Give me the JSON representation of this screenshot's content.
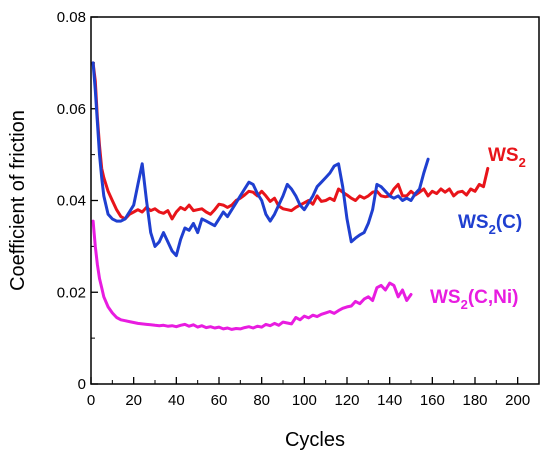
{
  "chart_data": {
    "type": "line",
    "xlabel": "Cycles",
    "ylabel": "Coefficient of friction",
    "xlim": [
      0,
      210
    ],
    "ylim": [
      0,
      0.08
    ],
    "x_ticks": [
      "0",
      "20",
      "40",
      "60",
      "80",
      "100",
      "120",
      "140",
      "160",
      "180",
      "200"
    ],
    "y_ticks": [
      "0",
      "0.02",
      "0.04",
      "0.06",
      "0.08"
    ],
    "grid": false,
    "legend": "inline labels next to curves",
    "series": [
      {
        "name": "WS2",
        "label_main": "WS",
        "label_sub": "2",
        "label_suffix": "",
        "color": "#e8141a",
        "x": [
          1,
          2,
          3,
          4,
          5,
          6,
          8,
          10,
          12,
          14,
          16,
          18,
          20,
          22,
          24,
          26,
          28,
          30,
          32,
          34,
          36,
          38,
          40,
          42,
          44,
          46,
          48,
          50,
          52,
          54,
          56,
          58,
          60,
          62,
          64,
          66,
          68,
          70,
          72,
          74,
          76,
          78,
          80,
          82,
          84,
          86,
          88,
          90,
          92,
          94,
          96,
          98,
          100,
          102,
          104,
          106,
          108,
          110,
          112,
          114,
          116,
          118,
          120,
          122,
          124,
          126,
          128,
          130,
          132,
          134,
          136,
          138,
          140,
          142,
          144,
          146,
          148,
          150,
          152,
          154,
          156,
          158,
          160,
          162,
          164,
          166,
          168,
          170,
          172,
          174,
          176,
          178,
          180,
          182,
          184,
          186
        ],
        "y": [
          0.07,
          0.066,
          0.058,
          0.052,
          0.047,
          0.045,
          0.042,
          0.04,
          0.038,
          0.0365,
          0.036,
          0.037,
          0.0375,
          0.038,
          0.0375,
          0.0385,
          0.0378,
          0.0382,
          0.0375,
          0.0372,
          0.0378,
          0.036,
          0.0375,
          0.0385,
          0.038,
          0.039,
          0.0378,
          0.038,
          0.0382,
          0.0375,
          0.037,
          0.038,
          0.0392,
          0.039,
          0.0385,
          0.039,
          0.04,
          0.0405,
          0.0412,
          0.042,
          0.0418,
          0.041,
          0.042,
          0.041,
          0.0398,
          0.0405,
          0.0388,
          0.0382,
          0.038,
          0.0378,
          0.0385,
          0.039,
          0.0395,
          0.04,
          0.0392,
          0.041,
          0.0398,
          0.04,
          0.0405,
          0.04,
          0.0425,
          0.0418,
          0.0412,
          0.0405,
          0.04,
          0.041,
          0.0405,
          0.041,
          0.0418,
          0.042,
          0.041,
          0.0408,
          0.041,
          0.0425,
          0.0435,
          0.041,
          0.041,
          0.042,
          0.0412,
          0.0418,
          0.0425,
          0.041,
          0.042,
          0.0415,
          0.0425,
          0.0418,
          0.0425,
          0.041,
          0.0418,
          0.042,
          0.0412,
          0.0425,
          0.042,
          0.0435,
          0.043,
          0.047
        ]
      },
      {
        "name": "WS2(C)",
        "label_main": "WS",
        "label_sub": "2",
        "label_suffix": "(C)",
        "color": "#1f3fd0",
        "x": [
          1,
          2,
          3,
          4,
          5,
          6,
          8,
          10,
          12,
          14,
          16,
          18,
          20,
          22,
          24,
          26,
          28,
          30,
          32,
          34,
          36,
          38,
          40,
          42,
          44,
          46,
          48,
          50,
          52,
          54,
          56,
          58,
          60,
          62,
          64,
          66,
          68,
          70,
          72,
          74,
          76,
          78,
          80,
          82,
          84,
          86,
          88,
          90,
          92,
          94,
          96,
          98,
          100,
          102,
          104,
          106,
          108,
          110,
          112,
          114,
          116,
          118,
          120,
          122,
          124,
          126,
          128,
          130,
          132,
          134,
          136,
          138,
          140,
          142,
          144,
          146,
          148,
          150,
          152,
          154,
          156,
          158
        ],
        "y": [
          0.07,
          0.064,
          0.057,
          0.05,
          0.045,
          0.041,
          0.037,
          0.036,
          0.0355,
          0.0355,
          0.036,
          0.0375,
          0.039,
          0.0435,
          0.048,
          0.04,
          0.033,
          0.03,
          0.031,
          0.033,
          0.031,
          0.029,
          0.028,
          0.0315,
          0.034,
          0.0335,
          0.035,
          0.033,
          0.036,
          0.0355,
          0.035,
          0.0345,
          0.036,
          0.0375,
          0.0365,
          0.038,
          0.0395,
          0.041,
          0.0425,
          0.044,
          0.0435,
          0.0415,
          0.04,
          0.037,
          0.0355,
          0.037,
          0.039,
          0.041,
          0.0435,
          0.0425,
          0.041,
          0.039,
          0.038,
          0.0395,
          0.041,
          0.043,
          0.044,
          0.045,
          0.046,
          0.0475,
          0.048,
          0.043,
          0.036,
          0.031,
          0.0318,
          0.0325,
          0.033,
          0.035,
          0.038,
          0.0435,
          0.043,
          0.042,
          0.041,
          0.0405,
          0.041,
          0.04,
          0.0405,
          0.04,
          0.0415,
          0.0425,
          0.046,
          0.049
        ]
      },
      {
        "name": "WS2(C,Ni)",
        "label_main": "WS",
        "label_sub": "2",
        "label_suffix": "(C,Ni)",
        "color": "#e81ce0",
        "x": [
          1,
          2,
          3,
          4,
          5,
          6,
          8,
          10,
          12,
          14,
          16,
          18,
          20,
          22,
          24,
          26,
          28,
          30,
          32,
          34,
          36,
          38,
          40,
          42,
          44,
          46,
          48,
          50,
          52,
          54,
          56,
          58,
          60,
          62,
          64,
          66,
          68,
          70,
          72,
          74,
          76,
          78,
          80,
          82,
          84,
          86,
          88,
          90,
          92,
          94,
          96,
          98,
          100,
          102,
          104,
          106,
          108,
          110,
          112,
          114,
          116,
          118,
          120,
          122,
          124,
          126,
          128,
          130,
          132,
          134,
          136,
          138,
          140,
          142,
          144,
          146,
          148,
          150
        ],
        "y": [
          0.0355,
          0.03,
          0.026,
          0.023,
          0.021,
          0.019,
          0.0168,
          0.0155,
          0.0145,
          0.014,
          0.0138,
          0.0136,
          0.0134,
          0.0132,
          0.0131,
          0.013,
          0.0129,
          0.0128,
          0.0127,
          0.0128,
          0.0126,
          0.0127,
          0.0125,
          0.0128,
          0.013,
          0.0126,
          0.0129,
          0.0124,
          0.0127,
          0.0123,
          0.0125,
          0.0122,
          0.0124,
          0.012,
          0.0122,
          0.0119,
          0.0121,
          0.012,
          0.0123,
          0.0125,
          0.0122,
          0.0126,
          0.0124,
          0.013,
          0.0127,
          0.0132,
          0.0128,
          0.0135,
          0.0133,
          0.0131,
          0.0145,
          0.014,
          0.0148,
          0.0144,
          0.015,
          0.0147,
          0.0152,
          0.0155,
          0.0158,
          0.0154,
          0.016,
          0.0165,
          0.0168,
          0.017,
          0.018,
          0.0175,
          0.0185,
          0.019,
          0.0182,
          0.021,
          0.0215,
          0.0205,
          0.022,
          0.0215,
          0.019,
          0.0205,
          0.0182,
          0.0195
        ]
      }
    ]
  }
}
